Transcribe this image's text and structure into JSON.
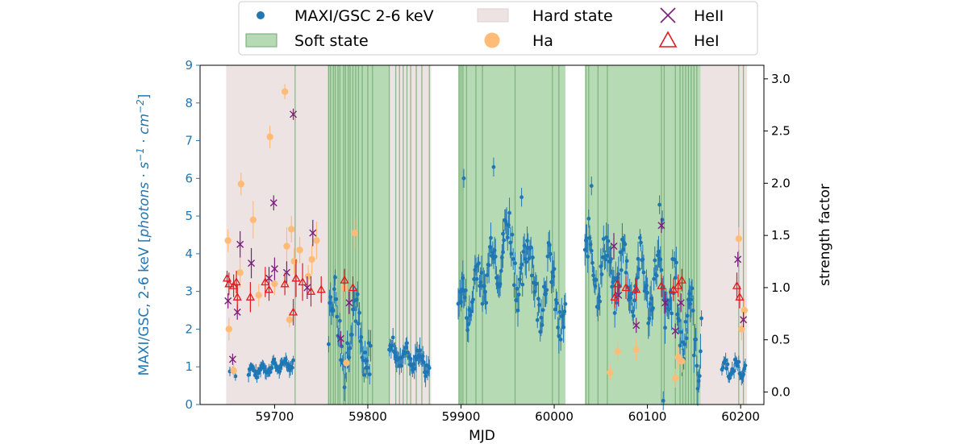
{
  "chart_data": {
    "type": "scatter",
    "xlabel": "MJD",
    "ylabel_left": "MAXI/GSC, 2-6 keV [photons · s⁻¹ · cm⁻²]",
    "ylabel_left_parts": [
      "MAXI/GSC, 2-6 keV [",
      "photons",
      " · ",
      "s",
      "−1",
      " · ",
      "cm",
      "−2",
      "]"
    ],
    "ylabel_right": "strength factor",
    "xlim": [
      59620,
      60225
    ],
    "ylim_left": [
      0,
      9
    ],
    "ylim_right": [
      -0.12,
      3.13
    ],
    "x_ticks": [
      59700,
      59800,
      59900,
      60000,
      60100,
      60200
    ],
    "y_ticks_left": [
      0,
      1,
      2,
      3,
      4,
      5,
      6,
      7,
      8,
      9
    ],
    "y_ticks_right": [
      "0.0",
      "0.5",
      "1.0",
      "1.5",
      "2.0",
      "2.5",
      "3.0"
    ],
    "y_ticks_right_values": [
      0.0,
      0.5,
      1.0,
      1.5,
      2.0,
      2.5,
      3.0
    ],
    "legend_placement": "top-center, outside",
    "colors": {
      "maxi": "#1f77b4",
      "left_axis": "#1f77b4",
      "soft_fill": "#b6dbb4",
      "soft_line": "#6fa86f",
      "hard_fill": "#ede3e3",
      "ha": "#ffbb78",
      "heii": "#7b1f7b",
      "hei": "#e41a1c"
    },
    "legend": [
      {
        "key": "maxi",
        "label": "MAXI/GSC 2-6 keV"
      },
      {
        "key": "hard",
        "label": "Hard state"
      },
      {
        "key": "heii",
        "label": "HeII"
      },
      {
        "key": "soft",
        "label": "Soft state"
      },
      {
        "key": "ha",
        "label": "Ha"
      },
      {
        "key": "hei",
        "label": "HeI"
      }
    ],
    "hard_state_intervals": [
      [
        59648,
        59757
      ],
      [
        59823,
        59868
      ],
      [
        60157,
        60207
      ]
    ],
    "soft_state_intervals": [
      [
        59757,
        59823
      ],
      [
        59897,
        60012
      ],
      [
        60033,
        60157
      ]
    ],
    "soft_state_transition_lines": [
      59722,
      59758,
      59760,
      59763,
      59765,
      59768,
      59770,
      59774,
      59776,
      59779,
      59781,
      59784,
      59787,
      59790,
      59794,
      59800,
      59805,
      59823,
      59830,
      59834,
      59838,
      59842,
      59846,
      59852,
      59858,
      59866,
      59898,
      59900,
      59902,
      59906,
      59916,
      59923,
      59958,
      59998,
      60005,
      60034,
      60037,
      60047,
      60057,
      60115,
      60118,
      60130,
      60135,
      60138,
      60141,
      60144,
      60147,
      60150,
      60153,
      60198,
      60203
    ],
    "maxi_segments": [
      {
        "x_range": [
          59652,
          59660
        ],
        "y_mean": 0.88,
        "y_amp": 0.12,
        "err": 0.12,
        "step": 3,
        "cycles": 1.0,
        "drift": 0.0
      },
      {
        "x_range": [
          59672,
          59720
        ],
        "y_mean": 0.98,
        "y_amp": 0.12,
        "err": 0.15,
        "step": 1,
        "cycles": 4.0,
        "drift": 0.25
      },
      {
        "x_range": [
          59758,
          59803
        ],
        "y_mean": 1.9,
        "y_amp": 0.9,
        "err": 0.3,
        "step": 1,
        "cycles": 2.0,
        "drift": -0.6
      },
      {
        "x_range": [
          59823,
          59866
        ],
        "y_mean": 1.25,
        "y_amp": 0.25,
        "err": 0.25,
        "step": 1,
        "cycles": 3.0,
        "drift": -0.3
      },
      {
        "x_range": [
          59897,
          59945
        ],
        "y_mean": 3.3,
        "y_amp": 0.6,
        "err": 0.35,
        "step": 1,
        "cycles": 3.0,
        "drift": 1.8
      },
      {
        "x_range": [
          59945,
          60012
        ],
        "y_mean": 3.4,
        "y_amp": 0.8,
        "err": 0.35,
        "step": 1,
        "cycles": 3.0,
        "drift": -1.6
      },
      {
        "x_range": [
          60033,
          60125
        ],
        "y_mean": 3.4,
        "y_amp": 0.7,
        "err": 0.35,
        "step": 1,
        "cycles": 5.0,
        "drift": -0.8
      },
      {
        "x_range": [
          60125,
          60158
        ],
        "y_mean": 2.2,
        "y_amp": 0.9,
        "err": 0.35,
        "step": 1,
        "cycles": 2.0,
        "drift": -1.0
      },
      {
        "x_range": [
          60180,
          60205
        ],
        "y_mean": 0.95,
        "y_amp": 0.2,
        "err": 0.15,
        "step": 1,
        "cycles": 2.0,
        "drift": 0.0
      }
    ],
    "maxi_outliers": [
      [
        59903,
        6.0
      ],
      [
        59935,
        6.3
      ],
      [
        60040,
        5.8
      ],
      [
        60113,
        5.3
      ],
      [
        60116,
        4.9
      ],
      [
        60117,
        0.1
      ],
      [
        59965,
        5.5
      ]
    ],
    "ha_points": [
      [
        59650,
        4.35,
        0.3
      ],
      [
        59651,
        2.0,
        0.3
      ],
      [
        59656,
        0.9,
        0.2
      ],
      [
        59664,
        5.85,
        0.3
      ],
      [
        59663,
        3.5,
        0.4
      ],
      [
        59677,
        4.9,
        0.5
      ],
      [
        59683,
        2.9,
        0.3
      ],
      [
        59695,
        7.1,
        0.3
      ],
      [
        59700,
        3.2,
        0.3
      ],
      [
        59711,
        8.3,
        0.2
      ],
      [
        59713,
        4.2,
        0.5
      ],
      [
        59716,
        2.25,
        0.2
      ],
      [
        59718,
        4.65,
        0.35
      ],
      [
        59721,
        3.8,
        0.35
      ],
      [
        59727,
        4.1,
        0.35
      ],
      [
        59736,
        3.4,
        0.3
      ],
      [
        59740,
        3.85,
        0.4
      ],
      [
        59745,
        4.35,
        0.5
      ],
      [
        59775,
        3.1,
        0.35
      ],
      [
        59777,
        1.1,
        0.25
      ],
      [
        59786,
        4.55,
        0.4
      ],
      [
        60060,
        0.85,
        0.2
      ],
      [
        60068,
        1.4,
        0.3
      ],
      [
        60088,
        1.45,
        0.3
      ],
      [
        60130,
        0.7,
        0.25
      ],
      [
        60133,
        1.25,
        0.3
      ],
      [
        60137,
        1.15,
        0.3
      ],
      [
        60198,
        4.4,
        0.3
      ],
      [
        60201,
        2.0,
        0.3
      ],
      [
        60204,
        2.5,
        0.3
      ]
    ],
    "heii_points": [
      [
        59650,
        2.75,
        0.2
      ],
      [
        59655,
        1.2,
        0.15
      ],
      [
        59660,
        2.45,
        0.2
      ],
      [
        59663,
        4.25,
        0.35
      ],
      [
        59675,
        3.75,
        0.4
      ],
      [
        59694,
        3.35,
        0.3
      ],
      [
        59699,
        5.35,
        0.2
      ],
      [
        59700,
        3.6,
        0.3
      ],
      [
        59713,
        3.5,
        0.3
      ],
      [
        59720,
        7.7,
        0.15
      ],
      [
        59735,
        3.1,
        0.3
      ],
      [
        59741,
        4.55,
        0.35
      ],
      [
        59771,
        1.75,
        0.2
      ],
      [
        59780,
        2.7,
        0.3
      ],
      [
        60064,
        4.2,
        0.35
      ],
      [
        60069,
        2.9,
        0.3
      ],
      [
        60088,
        2.1,
        0.2
      ],
      [
        60115,
        4.75,
        0.2
      ],
      [
        60119,
        2.7,
        0.3
      ],
      [
        60130,
        1.95,
        0.2
      ],
      [
        60136,
        2.7,
        0.25
      ],
      [
        60197,
        3.85,
        0.2
      ],
      [
        60203,
        2.25,
        0.2
      ]
    ],
    "hei_points": [
      [
        59649,
        3.35,
        0.2
      ],
      [
        59651,
        3.2,
        0.3
      ],
      [
        59656,
        3.15,
        0.3
      ],
      [
        59659,
        3.25,
        0.3
      ],
      [
        59660,
        2.85,
        0.35
      ],
      [
        59674,
        2.85,
        0.4
      ],
      [
        59690,
        3.25,
        0.4
      ],
      [
        59694,
        3.05,
        0.3
      ],
      [
        59711,
        3.2,
        0.3
      ],
      [
        59720,
        2.45,
        0.35
      ],
      [
        59723,
        3.35,
        0.5
      ],
      [
        59730,
        3.25,
        0.5
      ],
      [
        59739,
        3.0,
        0.4
      ],
      [
        59750,
        3.05,
        0.35
      ],
      [
        59775,
        3.3,
        0.3
      ],
      [
        59784,
        3.1,
        0.3
      ],
      [
        60065,
        2.85,
        0.3
      ],
      [
        60068,
        3.2,
        0.3
      ],
      [
        60077,
        3.1,
        0.3
      ],
      [
        60088,
        3.05,
        0.3
      ],
      [
        60115,
        3.15,
        0.3
      ],
      [
        60128,
        3.05,
        0.3
      ],
      [
        60133,
        3.15,
        0.3
      ],
      [
        60137,
        3.3,
        0.3
      ],
      [
        60196,
        3.15,
        0.35
      ],
      [
        60199,
        2.85,
        0.3
      ]
    ]
  }
}
